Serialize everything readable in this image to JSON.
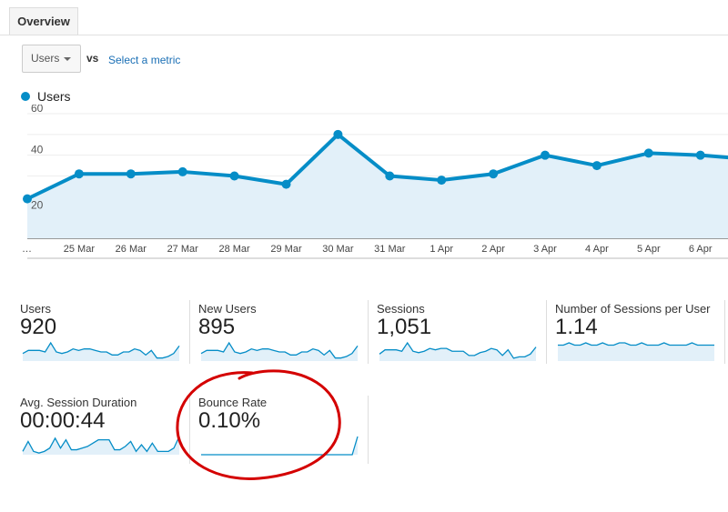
{
  "tabs": [
    {
      "label": "Overview"
    }
  ],
  "toolbar": {
    "metric_dropdown": "Users",
    "vs_label": "vs",
    "select_metric_link": "Select a metric"
  },
  "legend": {
    "label": "Users",
    "color": "#058dc7"
  },
  "chart_data": {
    "type": "area",
    "categories": [
      "…",
      "25 Mar",
      "26 Mar",
      "27 Mar",
      "28 Mar",
      "29 Mar",
      "30 Mar",
      "31 Mar",
      "1 Apr",
      "2 Apr",
      "3 Apr",
      "4 Apr",
      "5 Apr",
      "6 Apr",
      ""
    ],
    "series": [
      {
        "name": "Users",
        "values": [
          19,
          31,
          31,
          32,
          30,
          26,
          50,
          30,
          28,
          31,
          40,
          35,
          41,
          40,
          38
        ]
      }
    ],
    "yticks": [
      20,
      40,
      60
    ],
    "ylim": [
      0,
      60
    ],
    "grid": true,
    "legend": "top-left",
    "color": "#058dc7",
    "fill": "#e2f0f9"
  },
  "metrics": [
    {
      "label": "Users",
      "value": "920",
      "spark": [
        5,
        7,
        7,
        7,
        6,
        12,
        6,
        5,
        6,
        8,
        7,
        8,
        8,
        7,
        6,
        6,
        4,
        4,
        6,
        6,
        8,
        7,
        4,
        7,
        2,
        2,
        3,
        5,
        10
      ]
    },
    {
      "label": "New Users",
      "value": "895",
      "spark": [
        5,
        7,
        7,
        7,
        6,
        12,
        6,
        5,
        6,
        8,
        7,
        8,
        8,
        7,
        6,
        6,
        4,
        4,
        6,
        6,
        8,
        7,
        4,
        7,
        2,
        2,
        3,
        5,
        10
      ]
    },
    {
      "label": "Sessions",
      "value": "1,051",
      "spark": [
        5,
        8,
        8,
        8,
        7,
        13,
        7,
        6,
        7,
        9,
        8,
        9,
        9,
        7,
        7,
        7,
        4,
        4,
        6,
        7,
        9,
        8,
        4,
        8,
        2,
        3,
        3,
        5,
        10
      ]
    },
    {
      "label": "Number of Sessions per User",
      "value": "1.14",
      "spark": [
        7,
        7,
        8,
        7,
        7,
        8,
        7,
        7,
        8,
        7,
        7,
        8,
        8,
        7,
        7,
        8,
        7,
        7,
        7,
        8,
        7,
        7,
        7,
        7,
        8,
        7,
        7,
        7,
        7
      ]
    },
    {
      "label": "Avg. Session Duration",
      "value": "00:00:44",
      "spark": [
        2,
        8,
        2,
        1,
        2,
        4,
        10,
        4,
        9,
        3,
        3,
        4,
        5,
        7,
        9,
        9,
        9,
        3,
        3,
        5,
        8,
        2,
        6,
        2,
        7,
        2,
        2,
        2,
        4,
        11
      ]
    },
    {
      "label": "Bounce Rate",
      "value": "0.10%",
      "spark": [
        0,
        0,
        0,
        0,
        0,
        0,
        0,
        0,
        0,
        0,
        0,
        0,
        0,
        0,
        0,
        0,
        0,
        0,
        0,
        0,
        0,
        0,
        0,
        0,
        0,
        0,
        0,
        0,
        0,
        10
      ]
    }
  ],
  "annotation_color": "#d40000"
}
